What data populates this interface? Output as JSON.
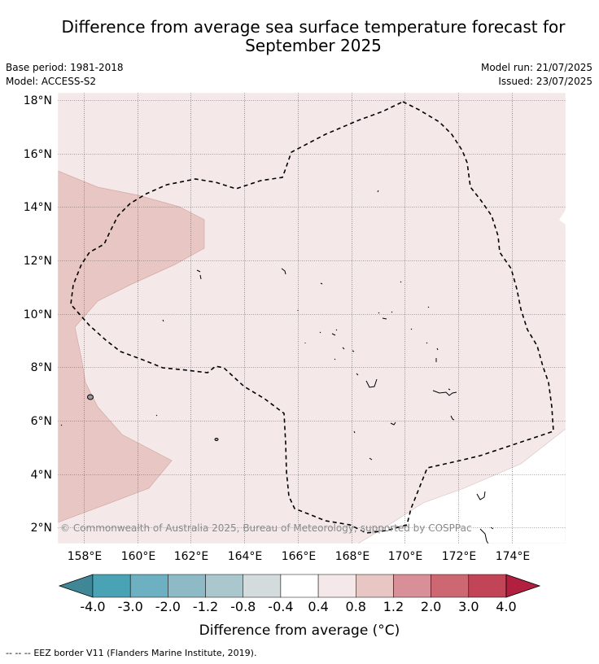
{
  "title_line1": "Difference from average sea surface temperature forecast for",
  "title_line2": "September 2025",
  "base_period": "Base period: 1981-2018",
  "model": "Model: ACCESS-S2",
  "model_run": "Model run: 21/07/2025",
  "issued": "Issued: 23/07/2025",
  "copyright": "© Commonwealth of Australia 2025, Bureau of Meteorology; supported by COSPPac",
  "lat_labels": [
    "18°N",
    "16°N",
    "14°N",
    "12°N",
    "10°N",
    "8°N",
    "6°N",
    "4°N",
    "2°N"
  ],
  "lon_labels": [
    "158°E",
    "160°E",
    "162°E",
    "164°E",
    "166°E",
    "168°E",
    "170°E",
    "172°E",
    "174°E"
  ],
  "colorbar": {
    "ticks": [
      "-4.0",
      "-3.0",
      "-2.0",
      "-1.2",
      "-0.8",
      "-0.4",
      "0.4",
      "0.8",
      "1.2",
      "2.0",
      "3.0",
      "4.0"
    ],
    "colors": [
      "#3f8796",
      "#4aa2b5",
      "#6cb0c2",
      "#8ebac6",
      "#a9c7cc",
      "#d3dbdd",
      "#ffffff",
      "#f4e8e8",
      "#e8c6c3",
      "#d88f97",
      "#cd6873",
      "#c14557",
      "#b1203e"
    ],
    "label": "Difference from average (°C)"
  },
  "legend": {
    "symbol": "--  --  --",
    "text": "EEZ border V11 (Flanders Marine Institute, 2019)."
  },
  "colors": {
    "anomaly_0_4_to_0_8": "#f4e8e8",
    "anomaly_0_8_to_1_2": "#e8c6c3"
  }
}
